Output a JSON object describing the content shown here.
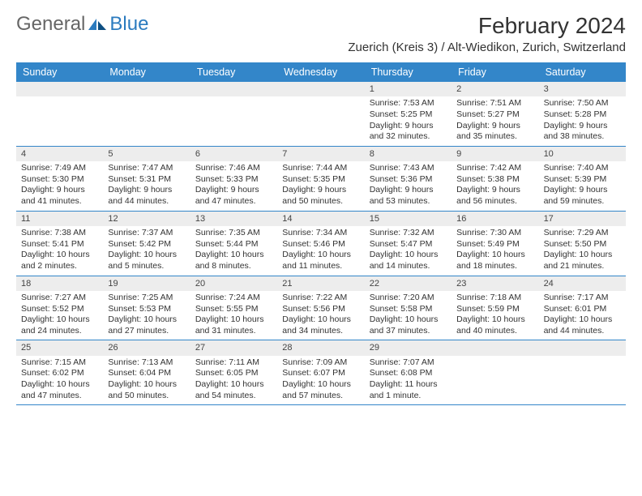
{
  "brand": {
    "general": "General",
    "blue": "Blue"
  },
  "title": "February 2024",
  "location": "Zuerich (Kreis 3) / Alt-Wiedikon, Zurich, Switzerland",
  "colors": {
    "header_bg": "#3386c9",
    "header_text": "#ffffff",
    "daynum_bg": "#ededed",
    "text": "#333333",
    "rule": "#3386c9"
  },
  "day_names": [
    "Sunday",
    "Monday",
    "Tuesday",
    "Wednesday",
    "Thursday",
    "Friday",
    "Saturday"
  ],
  "weeks": [
    [
      null,
      null,
      null,
      null,
      {
        "n": "1",
        "sr": "7:53 AM",
        "ss": "5:25 PM",
        "dl": "9 hours and 32 minutes."
      },
      {
        "n": "2",
        "sr": "7:51 AM",
        "ss": "5:27 PM",
        "dl": "9 hours and 35 minutes."
      },
      {
        "n": "3",
        "sr": "7:50 AM",
        "ss": "5:28 PM",
        "dl": "9 hours and 38 minutes."
      }
    ],
    [
      {
        "n": "4",
        "sr": "7:49 AM",
        "ss": "5:30 PM",
        "dl": "9 hours and 41 minutes."
      },
      {
        "n": "5",
        "sr": "7:47 AM",
        "ss": "5:31 PM",
        "dl": "9 hours and 44 minutes."
      },
      {
        "n": "6",
        "sr": "7:46 AM",
        "ss": "5:33 PM",
        "dl": "9 hours and 47 minutes."
      },
      {
        "n": "7",
        "sr": "7:44 AM",
        "ss": "5:35 PM",
        "dl": "9 hours and 50 minutes."
      },
      {
        "n": "8",
        "sr": "7:43 AM",
        "ss": "5:36 PM",
        "dl": "9 hours and 53 minutes."
      },
      {
        "n": "9",
        "sr": "7:42 AM",
        "ss": "5:38 PM",
        "dl": "9 hours and 56 minutes."
      },
      {
        "n": "10",
        "sr": "7:40 AM",
        "ss": "5:39 PM",
        "dl": "9 hours and 59 minutes."
      }
    ],
    [
      {
        "n": "11",
        "sr": "7:38 AM",
        "ss": "5:41 PM",
        "dl": "10 hours and 2 minutes."
      },
      {
        "n": "12",
        "sr": "7:37 AM",
        "ss": "5:42 PM",
        "dl": "10 hours and 5 minutes."
      },
      {
        "n": "13",
        "sr": "7:35 AM",
        "ss": "5:44 PM",
        "dl": "10 hours and 8 minutes."
      },
      {
        "n": "14",
        "sr": "7:34 AM",
        "ss": "5:46 PM",
        "dl": "10 hours and 11 minutes."
      },
      {
        "n": "15",
        "sr": "7:32 AM",
        "ss": "5:47 PM",
        "dl": "10 hours and 14 minutes."
      },
      {
        "n": "16",
        "sr": "7:30 AM",
        "ss": "5:49 PM",
        "dl": "10 hours and 18 minutes."
      },
      {
        "n": "17",
        "sr": "7:29 AM",
        "ss": "5:50 PM",
        "dl": "10 hours and 21 minutes."
      }
    ],
    [
      {
        "n": "18",
        "sr": "7:27 AM",
        "ss": "5:52 PM",
        "dl": "10 hours and 24 minutes."
      },
      {
        "n": "19",
        "sr": "7:25 AM",
        "ss": "5:53 PM",
        "dl": "10 hours and 27 minutes."
      },
      {
        "n": "20",
        "sr": "7:24 AM",
        "ss": "5:55 PM",
        "dl": "10 hours and 31 minutes."
      },
      {
        "n": "21",
        "sr": "7:22 AM",
        "ss": "5:56 PM",
        "dl": "10 hours and 34 minutes."
      },
      {
        "n": "22",
        "sr": "7:20 AM",
        "ss": "5:58 PM",
        "dl": "10 hours and 37 minutes."
      },
      {
        "n": "23",
        "sr": "7:18 AM",
        "ss": "5:59 PM",
        "dl": "10 hours and 40 minutes."
      },
      {
        "n": "24",
        "sr": "7:17 AM",
        "ss": "6:01 PM",
        "dl": "10 hours and 44 minutes."
      }
    ],
    [
      {
        "n": "25",
        "sr": "7:15 AM",
        "ss": "6:02 PM",
        "dl": "10 hours and 47 minutes."
      },
      {
        "n": "26",
        "sr": "7:13 AM",
        "ss": "6:04 PM",
        "dl": "10 hours and 50 minutes."
      },
      {
        "n": "27",
        "sr": "7:11 AM",
        "ss": "6:05 PM",
        "dl": "10 hours and 54 minutes."
      },
      {
        "n": "28",
        "sr": "7:09 AM",
        "ss": "6:07 PM",
        "dl": "10 hours and 57 minutes."
      },
      {
        "n": "29",
        "sr": "7:07 AM",
        "ss": "6:08 PM",
        "dl": "11 hours and 1 minute."
      },
      null,
      null
    ]
  ],
  "labels": {
    "sunrise": "Sunrise: ",
    "sunset": "Sunset: ",
    "daylight": "Daylight: "
  }
}
